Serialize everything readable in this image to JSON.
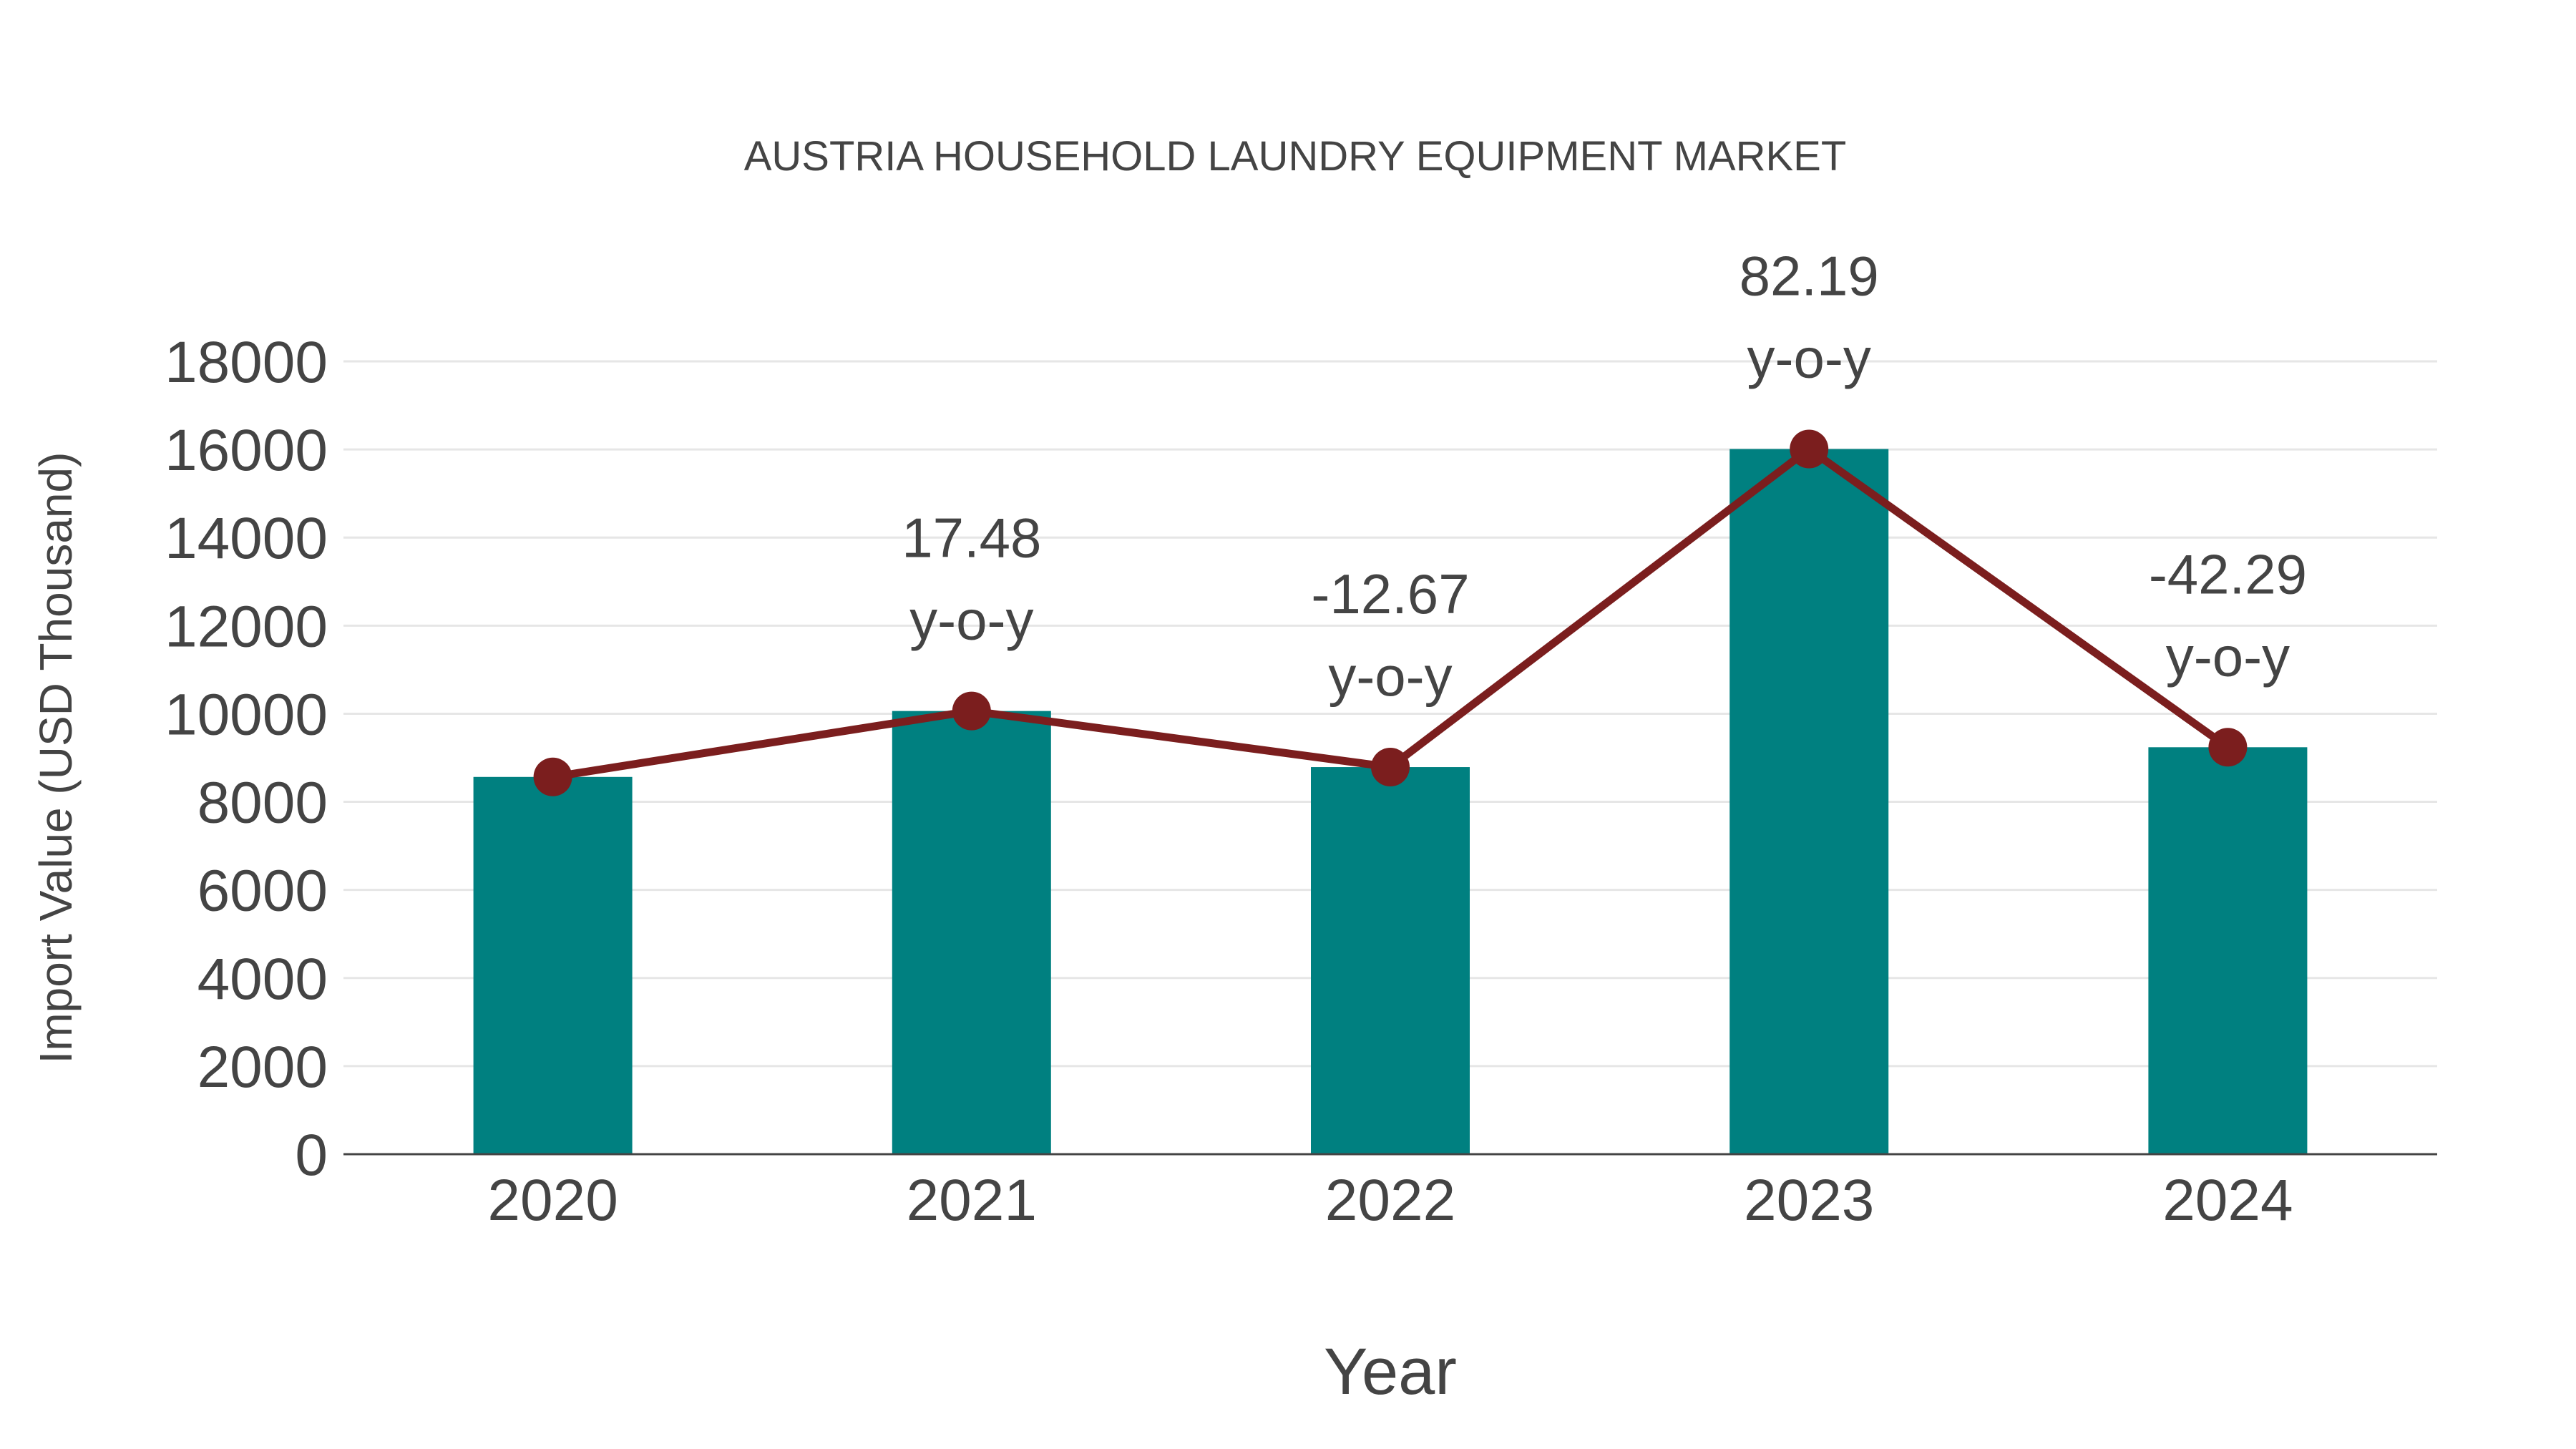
{
  "chart_data": {
    "type": "bar",
    "title": "AUSTRIA HOUSEHOLD LAUNDRY EQUIPMENT MARKET",
    "xlabel": "Year",
    "ylabel": "Import Value (USD Thousand)",
    "categories": [
      "2020",
      "2021",
      "2022",
      "2023",
      "2024"
    ],
    "series": [
      {
        "name": "Import Value",
        "kind": "bar",
        "color": "#008080",
        "values": [
          8565,
          10062,
          8788,
          16010,
          9239
        ]
      },
      {
        "name": "Import Value trend",
        "kind": "line",
        "color": "#7B1E1E",
        "values": [
          8565,
          10062,
          8788,
          16010,
          9239
        ]
      }
    ],
    "annotations": [
      {
        "category": "2021",
        "value": "17.48",
        "suffix": "y-o-y"
      },
      {
        "category": "2022",
        "value": "-12.67",
        "suffix": "y-o-y"
      },
      {
        "category": "2023",
        "value": "82.19",
        "suffix": "y-o-y"
      },
      {
        "category": "2024",
        "value": "-42.29",
        "suffix": "y-o-y"
      }
    ],
    "yticks": [
      0,
      2000,
      4000,
      6000,
      8000,
      10000,
      12000,
      14000,
      16000,
      18000
    ],
    "ylim": [
      0,
      18000
    ],
    "grid": true,
    "legend": "none"
  },
  "colors": {
    "bar": "#008080",
    "line": "#7B1E1E",
    "grid": "#e6e6e6",
    "axis": "#444444",
    "text": "#444444"
  }
}
